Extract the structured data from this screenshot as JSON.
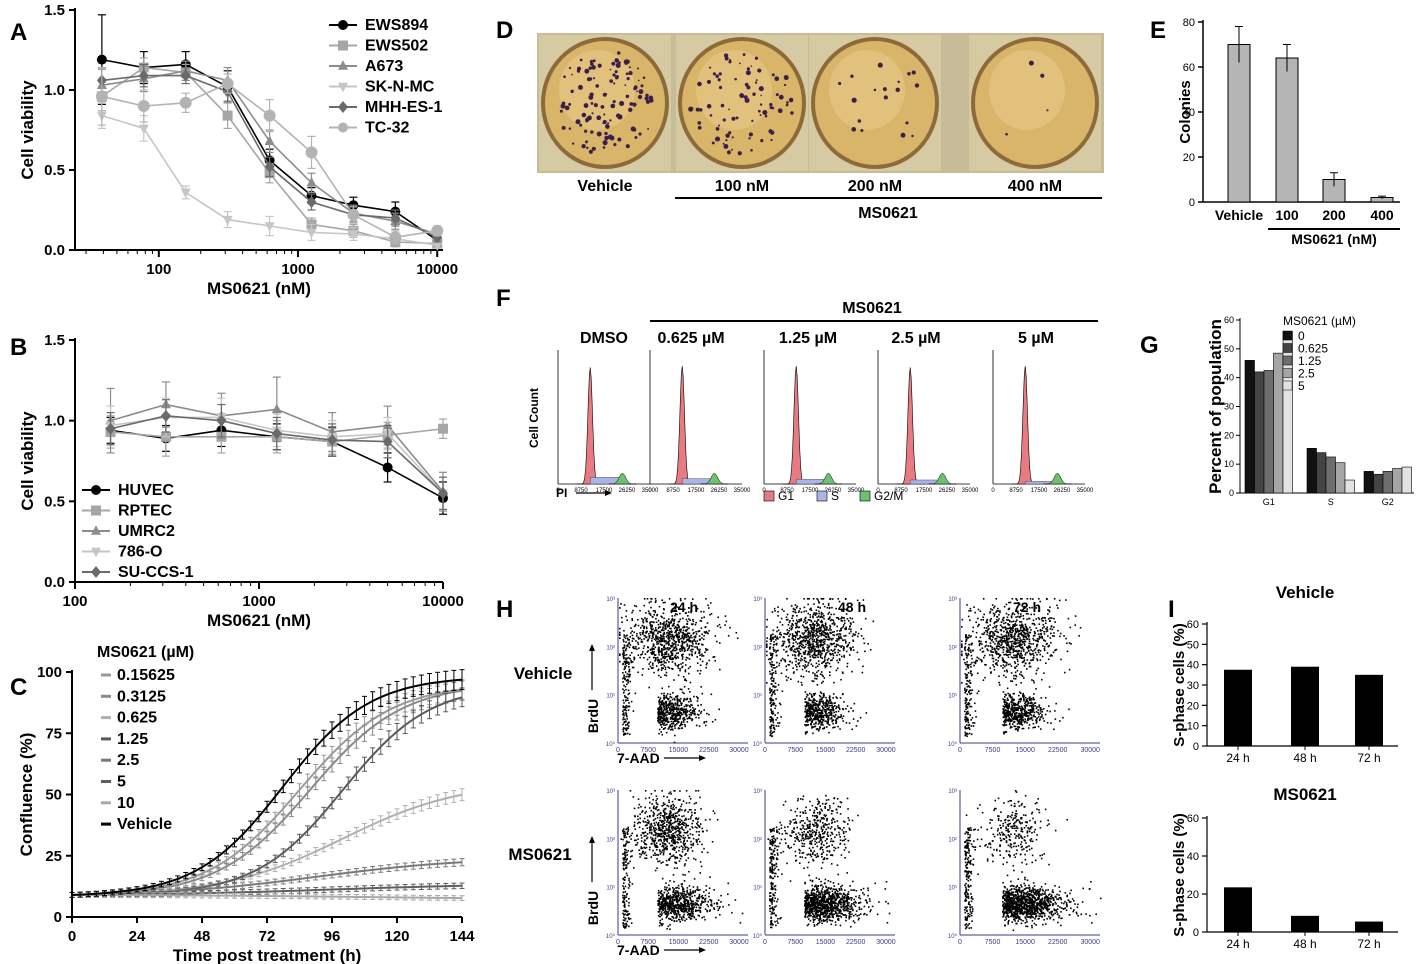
{
  "panel_letters": [
    "A",
    "B",
    "C",
    "D",
    "E",
    "F",
    "G",
    "H",
    "I"
  ],
  "colors": {
    "EWS894": "#000000",
    "EWS502": "#a6a6a6",
    "A673": "#8c8c8c",
    "SK-N-MC": "#c6c6c6",
    "MHH-ES-1": "#6a6a6a",
    "TC-32": "#b3b3b3",
    "HUVEC": "#000000",
    "RPTEC": "#a6a6a6",
    "UMRC2": "#8c8c8c",
    "786-O": "#c6c6c6",
    "SU-CCS-1": "#6a6a6a",
    "hist_red": "#e87a82",
    "hist_blue": "#aab4e6",
    "hist_green": "#6cc070",
    "bar_gray": "#b5b5b5",
    "plate": "#d9b56a"
  },
  "chart_data": [
    {
      "panel": "A",
      "type": "line",
      "xscale": "log",
      "xlabel": "MS0621 (nM)",
      "ylabel": "Cell viability",
      "xlim": [
        25,
        11000
      ],
      "ylim": [
        0,
        1.5
      ],
      "xticks": [
        100,
        1000,
        10000
      ],
      "xtick_labels": [
        "100",
        "1000",
        "10000"
      ],
      "yticks": [
        0,
        0.5,
        1.0,
        1.5
      ],
      "ytick_labels": [
        "0.0",
        "0.5",
        "1.0",
        "1.5"
      ],
      "x": [
        39,
        78,
        156,
        312,
        625,
        1250,
        2500,
        5000,
        10000
      ],
      "series": [
        {
          "name": "EWS894",
          "marker": "circle",
          "values": [
            1.19,
            1.14,
            1.16,
            1.02,
            0.56,
            0.34,
            0.28,
            0.24,
            0.06
          ],
          "err": [
            0.28,
            0.1,
            0.08,
            0.1,
            0.07,
            0.05,
            0.05,
            0.06,
            0.04
          ]
        },
        {
          "name": "EWS502",
          "marker": "square",
          "values": [
            0.96,
            1.14,
            1.11,
            0.84,
            0.48,
            0.16,
            0.12,
            0.05,
            0.04
          ],
          "err": [
            0.09,
            0.06,
            0.05,
            0.08,
            0.06,
            0.04,
            0.04,
            0.03,
            0.02
          ]
        },
        {
          "name": "A673",
          "marker": "triangle",
          "values": [
            1.03,
            1.07,
            1.12,
            1.06,
            0.68,
            0.42,
            0.23,
            0.18,
            0.1
          ],
          "err": [
            0.1,
            0.08,
            0.06,
            0.08,
            0.07,
            0.06,
            0.05,
            0.05,
            0.04
          ]
        },
        {
          "name": "SK-N-MC",
          "marker": "inv-triangle",
          "values": [
            0.84,
            0.76,
            0.36,
            0.19,
            0.15,
            0.11,
            0.1,
            0.07,
            0.03
          ],
          "err": [
            0.08,
            0.08,
            0.04,
            0.05,
            0.06,
            0.05,
            0.04,
            0.03,
            0.02
          ]
        },
        {
          "name": "MHH-ES-1",
          "marker": "diamond",
          "values": [
            1.06,
            1.09,
            1.09,
            0.99,
            0.52,
            0.3,
            0.22,
            0.2,
            0.08
          ],
          "err": [
            0.08,
            0.07,
            0.05,
            0.06,
            0.06,
            0.05,
            0.05,
            0.05,
            0.03
          ]
        },
        {
          "name": "TC-32",
          "marker": "circle",
          "values": [
            0.96,
            0.9,
            0.92,
            1.04,
            0.84,
            0.61,
            0.22,
            0.08,
            0.12
          ],
          "err": [
            0.18,
            0.1,
            0.06,
            0.06,
            0.1,
            0.1,
            0.05,
            0.04,
            0.03
          ]
        }
      ]
    },
    {
      "panel": "B",
      "type": "line",
      "xscale": "log",
      "xlabel": "MS0621 (nM)",
      "ylabel": "Cell viability",
      "xlim": [
        100,
        10000
      ],
      "ylim": [
        0,
        1.5
      ],
      "xticks": [
        100,
        1000,
        10000
      ],
      "xtick_labels": [
        "100",
        "1000",
        "10000"
      ],
      "yticks": [
        0,
        0.5,
        1.0,
        1.5
      ],
      "ytick_labels": [
        "0.0",
        "0.5",
        "1.0",
        "1.5"
      ],
      "x": [
        156,
        312,
        625,
        1250,
        2500,
        5000,
        10000
      ],
      "series": [
        {
          "name": "HUVEC",
          "marker": "circle",
          "values": [
            0.94,
            0.89,
            0.94,
            0.9,
            0.87,
            0.71,
            0.52
          ],
          "err": [
            0.08,
            0.08,
            0.1,
            0.08,
            0.09,
            0.09,
            0.1
          ]
        },
        {
          "name": "RPTEC",
          "marker": "square",
          "values": [
            0.93,
            0.9,
            0.9,
            0.9,
            0.87,
            0.91,
            0.95
          ],
          "err": [
            0.1,
            0.12,
            0.1,
            0.1,
            0.08,
            0.08,
            0.06
          ]
        },
        {
          "name": "UMRC2",
          "marker": "triangle",
          "values": [
            1.0,
            1.1,
            1.03,
            1.07,
            0.93,
            0.97,
            0.56
          ],
          "err": [
            0.2,
            0.14,
            0.14,
            0.2,
            0.12,
            0.12,
            0.12
          ]
        },
        {
          "name": "786-O",
          "marker": "inv-triangle",
          "values": [
            0.97,
            1.02,
            1.02,
            0.94,
            0.9,
            0.92,
            0.55
          ],
          "err": [
            0.12,
            0.12,
            0.12,
            0.1,
            0.1,
            0.1,
            0.1
          ]
        },
        {
          "name": "SU-CCS-1",
          "marker": "diamond",
          "values": [
            0.95,
            1.03,
            1.0,
            0.92,
            0.88,
            0.87,
            0.55
          ],
          "err": [
            0.1,
            0.1,
            0.1,
            0.1,
            0.1,
            0.1,
            0.1
          ]
        }
      ]
    },
    {
      "panel": "C",
      "type": "line",
      "xlabel": "Time post treatment (h)",
      "ylabel": "Confluence (%)",
      "legend_title": "MS0621 (µM)",
      "xlim": [
        0,
        144
      ],
      "ylim": [
        0,
        100
      ],
      "xticks": [
        0,
        24,
        48,
        72,
        96,
        120,
        144
      ],
      "xtick_labels": [
        "0",
        "24",
        "48",
        "72",
        "96",
        "120",
        "144"
      ],
      "yticks": [
        0,
        25,
        50,
        75,
        100
      ],
      "ytick_labels": [
        "0",
        "25",
        "50",
        "75",
        "100"
      ],
      "series": [
        {
          "name": "0.15625",
          "color": "#9a9a9a",
          "max": 96,
          "mid": 84,
          "k": 17
        },
        {
          "name": "0.3125",
          "color": "#8a8a8a",
          "max": 96,
          "mid": 88,
          "k": 17
        },
        {
          "name": "0.625",
          "color": "#b0b0b0",
          "max": 56,
          "mid": 100,
          "k": 22
        },
        {
          "name": "1.25",
          "color": "#5a5a5a",
          "max": 95,
          "mid": 100,
          "k": 16
        },
        {
          "name": "2.5",
          "color": "#7a7a7a",
          "max": 25,
          "mid": 90,
          "k": 28
        },
        {
          "name": "5",
          "color": "#5f5f5f",
          "max": 14,
          "mid": 96,
          "k": 34
        },
        {
          "name": "10",
          "color": "#a8a8a8",
          "max": 7,
          "mid": 110,
          "k": 40
        },
        {
          "name": "Vehicle",
          "color": "#000000",
          "max": 99,
          "mid": 78,
          "k": 16
        }
      ]
    },
    {
      "panel": "E",
      "type": "bar",
      "ylabel": "Colonies",
      "group_label": "MS0621 (nM)",
      "categories": [
        "Vehicle",
        "100",
        "200",
        "400"
      ],
      "values": [
        70,
        64,
        10,
        2
      ],
      "err": [
        8,
        6,
        3,
        0.6
      ],
      "ylim": [
        0,
        80
      ],
      "yticks": [
        0,
        20,
        40,
        60,
        80
      ],
      "ytick_labels": [
        "0",
        "20",
        "40",
        "60",
        "80"
      ]
    },
    {
      "panel": "G",
      "type": "bar",
      "ylabel": "Percent of population",
      "legend_title": "MS0621 (µM)",
      "categories": [
        "G1",
        "S",
        "G2"
      ],
      "series": [
        {
          "name": "0",
          "color": "#111111",
          "values": [
            46,
            15.5,
            7.5
          ]
        },
        {
          "name": "0.625",
          "color": "#444444",
          "values": [
            42,
            14,
            6.5
          ]
        },
        {
          "name": "1.25",
          "color": "#6e6e6e",
          "values": [
            42.5,
            12.5,
            7.5
          ]
        },
        {
          "name": "2.5",
          "color": "#a5a5a5",
          "values": [
            48.5,
            10.5,
            8.5
          ]
        },
        {
          "name": "5",
          "color": "#e2e2e2",
          "values": [
            56,
            4.5,
            9
          ]
        }
      ],
      "ylim": [
        0,
        60
      ],
      "yticks": [
        0,
        10,
        20,
        30,
        40,
        50,
        60
      ],
      "ytick_labels": [
        "0",
        "10",
        "20",
        "30",
        "40",
        "50",
        "60"
      ]
    },
    {
      "panel": "I",
      "type": "bar",
      "title": "Vehicle",
      "ylabel": "S-phase cells (%)",
      "categories": [
        "24 h",
        "48 h",
        "72 h"
      ],
      "values": [
        37.5,
        39,
        35
      ],
      "ylim": [
        0,
        60
      ],
      "yticks": [
        0,
        10,
        20,
        30,
        40,
        50,
        60
      ],
      "ytick_labels": [
        "0",
        "10",
        "20",
        "30",
        "40",
        "50",
        "60"
      ]
    },
    {
      "panel": "I",
      "type": "bar",
      "title": "MS0621",
      "ylabel": "S-phase cells (%)",
      "categories": [
        "24 h",
        "48 h",
        "72 h"
      ],
      "values": [
        23.5,
        8.5,
        5.5
      ],
      "ylim": [
        0,
        60
      ],
      "yticks": [
        0,
        20,
        40,
        60
      ],
      "ytick_labels": [
        "0",
        "20",
        "40",
        "60"
      ]
    }
  ],
  "panelD": {
    "labels": [
      "Vehicle",
      "100 nM",
      "200 nM",
      "400 nM"
    ],
    "group": "MS0621",
    "colony_density": [
      120,
      85,
      18,
      4
    ]
  },
  "panelF": {
    "group": "MS0621",
    "labels": [
      "DMSO",
      "0.625 µM",
      "1.25 µM",
      "2.5 µM",
      "5 µM"
    ],
    "ylabel": "Cell Count",
    "xlabel": "PI",
    "xtick_labels": [
      "0",
      "8750",
      "17500",
      "26250",
      "35000"
    ],
    "legend": [
      "G1",
      "S",
      "G2/M"
    ]
  },
  "panelH": {
    "time_labels": [
      "24 h",
      "48 h",
      "72 h"
    ],
    "row_labels": [
      "Vehicle",
      "MS0621"
    ],
    "ylabel": "BrdU",
    "xlabel": "7-AAD",
    "xtick_labels": [
      "0",
      "7500",
      "15000",
      "22500",
      "30000"
    ],
    "ytick_labels": [
      "10⁰",
      "10¹",
      "10²",
      "10³"
    ],
    "upper_cluster_fraction": [
      [
        0.55,
        0.55,
        0.55
      ],
      [
        0.45,
        0.28,
        0.18
      ]
    ]
  }
}
